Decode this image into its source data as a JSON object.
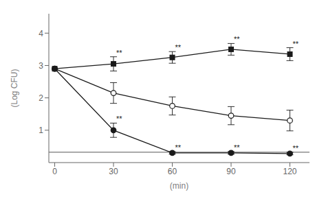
{
  "chart_data": {
    "type": "line",
    "xlabel": "(min)",
    "ylabel": "(Log CFU)",
    "x": [
      0,
      30,
      60,
      90,
      120
    ],
    "xlim": [
      -3,
      130
    ],
    "ylim": [
      0,
      4.6
    ],
    "xticks": [
      0,
      30,
      60,
      90,
      120
    ],
    "yticks": [
      1,
      2,
      3,
      4
    ],
    "grid": false,
    "series": [
      {
        "color": "#1a1a1a",
        "marker": "square",
        "values": [
          2.9,
          3.05,
          3.25,
          3.5,
          3.35
        ],
        "errors": [
          0.0,
          0.22,
          0.18,
          0.18,
          0.2
        ],
        "annotations": [
          {
            "x": 30,
            "text": "**"
          },
          {
            "x": 60,
            "text": "**"
          },
          {
            "x": 90,
            "text": "**"
          },
          {
            "x": 120,
            "text": "**"
          }
        ]
      },
      {
        "color": "#1a1a1a",
        "marker": "open_circle",
        "values": [
          2.9,
          2.15,
          1.75,
          1.45,
          1.3
        ],
        "errors": [
          0.0,
          0.32,
          0.28,
          0.28,
          0.32
        ]
      },
      {
        "color": "#1a1a1a",
        "marker": "circle",
        "values": [
          2.9,
          1.0,
          0.3,
          0.3,
          0.28
        ],
        "errors": [
          0.0,
          0.22,
          0.04,
          0.04,
          0.04
        ],
        "annotations": [
          {
            "x": 30,
            "text": "**"
          },
          {
            "x": 60,
            "text": "**"
          },
          {
            "x": 90,
            "text": "**"
          },
          {
            "x": 120,
            "text": "**"
          }
        ]
      }
    ],
    "reference_lines": [
      {
        "y": 0.32,
        "color": "#555555"
      }
    ]
  }
}
